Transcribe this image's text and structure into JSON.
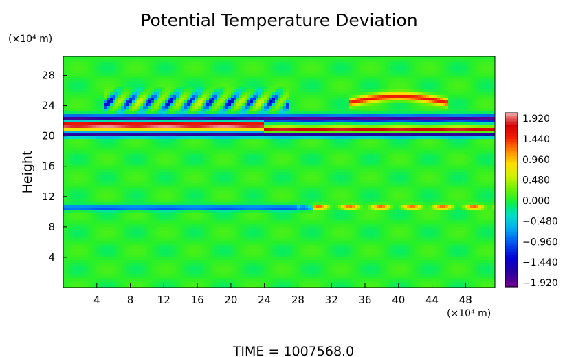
{
  "chart_data": {
    "type": "heatmap",
    "title": "Potential Temperature Deviation",
    "ylabel": "Height",
    "y_unit": "(×10⁴ m)",
    "x_unit": "(×10⁴ m)",
    "x_ticks": [
      4,
      8,
      12,
      16,
      20,
      24,
      28,
      32,
      36,
      40,
      44,
      48
    ],
    "y_ticks": [
      4,
      8,
      12,
      16,
      20,
      24,
      28
    ],
    "xlim": [
      0,
      51.5
    ],
    "ylim": [
      0,
      30.5
    ],
    "colorbar": {
      "labels": [
        "1.920",
        "1.440",
        "0.960",
        "0.480",
        "0.000",
        "−0.480",
        "−0.960",
        "−1.440",
        "−1.920"
      ],
      "range": [
        -2.16,
        2.16
      ]
    },
    "footer": "TIME  =  1007568.0",
    "field_features": [
      {
        "name": "upper-inversion-core",
        "y": 21.4,
        "x_from": 0,
        "x_to": 24,
        "value": 2.2
      },
      {
        "name": "upper-inversion-core-east",
        "y": 20.8,
        "x_from": 24,
        "x_to": 51.5,
        "value": 2.0
      },
      {
        "name": "upper-negative-band",
        "y": 22.3,
        "x_from": 0,
        "x_to": 51.5,
        "value": -2.0
      },
      {
        "name": "lower-negative-band",
        "y": 20.2,
        "x_from": 0,
        "x_to": 51.5,
        "value": -1.9
      },
      {
        "name": "upper-positive-arc",
        "y": 25.2,
        "x_from": 34,
        "x_to": 46,
        "value": 1.6
      },
      {
        "name": "wave-train",
        "y": 24.5,
        "x_from": 5,
        "x_to": 27,
        "value": -1.5
      },
      {
        "name": "low-level-negative-band",
        "y": 10.5,
        "x_from": 0,
        "x_to": 30,
        "value": -1.2
      },
      {
        "name": "low-level-positive-band",
        "y": 10.6,
        "x_from": 28,
        "x_to": 51.5,
        "value": 1.5
      },
      {
        "name": "background",
        "value": 0.0
      }
    ]
  }
}
